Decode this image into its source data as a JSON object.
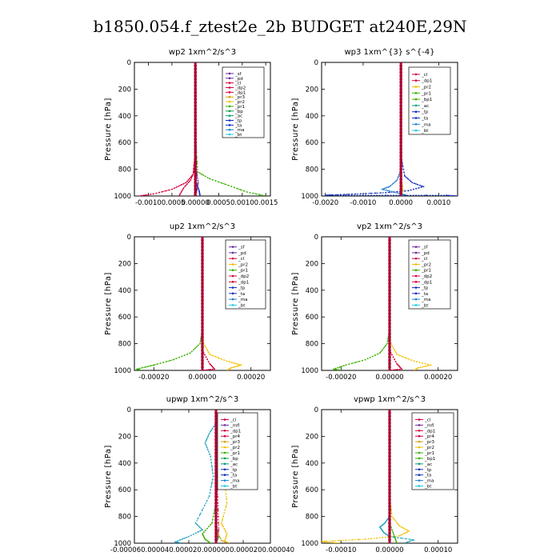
{
  "figure": {
    "title": "b1850.054.f_ztest2e_2b  BUDGET at240E,29N",
    "ylabel": "Pressure [hPa]"
  },
  "palette": {
    "sf": "#6a2ca0",
    "pd": "#6a2ca0",
    "mfl": "#6a2ca0",
    "cl": "#d8003a",
    "dp2": "#d8003a",
    "dp1": "#d8003a",
    "pr4": "#d8003a",
    "pr3": "#d8a000",
    "pr2": "#f0c000",
    "pr1": "#38b000",
    "bp1": "#38b000",
    "bp": "#00a040",
    "ac": "#00a070",
    "tp": "#1030c0",
    "ta": "#1030c0",
    "ma": "#2080d0",
    "bt": "#20c8e0"
  },
  "chart_data": [
    {
      "type": "line",
      "title": "wp2   1xm^2/s^3",
      "xlim": [
        -0.0013,
        0.0016
      ],
      "ylim": [
        1000,
        0
      ],
      "xticks": [
        -0.001,
        -0.0005,
        0.0,
        0.0005,
        0.001,
        0.0015
      ],
      "xtick_labels": [
        "-0.00100.0005",
        "0.00000",
        "0.00050.00100.0015"
      ],
      "xtick_label_positions": [
        -0.00075,
        0.0,
        0.001
      ],
      "yticks": [
        0,
        200,
        400,
        600,
        800,
        1000
      ],
      "legend": [
        "_sf",
        "_pd",
        "_cl",
        "_dp2",
        "_dp1",
        "_pr3",
        "_pr2",
        "_pr1",
        "_bp",
        "_ac",
        "_tp",
        "_ta",
        "_ma",
        "_bt"
      ],
      "series": [
        {
          "name": "_pr1",
          "color": "#38b000",
          "points": [
            [
              0,
              0
            ],
            [
              1e-05,
              600
            ],
            [
              5e-05,
              820
            ],
            [
              0.0003,
              870
            ],
            [
              0.0007,
              920
            ],
            [
              0.0011,
              970
            ],
            [
              0.0015,
              1000
            ]
          ]
        },
        {
          "name": "_cl",
          "color": "#d8003a",
          "points": [
            [
              0,
              0
            ],
            [
              -1e-05,
              700
            ],
            [
              -5e-05,
              840
            ],
            [
              -0.0002,
              900
            ],
            [
              -0.0005,
              950
            ],
            [
              -0.0009,
              985
            ],
            [
              -0.0012,
              1000
            ]
          ]
        },
        {
          "name": "_dp2",
          "color": "#d8003a",
          "points": [
            [
              0,
              0
            ],
            [
              -1e-05,
              800
            ],
            [
              -0.0001,
              880
            ],
            [
              -0.00025,
              940
            ],
            [
              -0.00035,
              1000
            ]
          ]
        },
        {
          "name": "_tp",
          "color": "#1030c0",
          "points": [
            [
              0,
              0
            ],
            [
              2e-05,
              900
            ],
            [
              8e-05,
              960
            ],
            [
              0.0001,
              1000
            ]
          ]
        },
        {
          "name": "_sf",
          "color": "#6a2ca0",
          "points": [
            [
              0,
              0
            ],
            [
              2e-05,
              800
            ],
            [
              6e-05,
              900
            ],
            [
              3e-05,
              960
            ],
            [
              -3e-05,
              1000
            ]
          ]
        },
        {
          "name": "_bt",
          "color": "#20c8e0",
          "points": [
            [
              0,
              0
            ],
            [
              0,
              1000
            ]
          ]
        }
      ]
    },
    {
      "type": "line",
      "title": "wp3   1xm^{3} s^{-4}",
      "xlim": [
        -0.0021,
        0.0015
      ],
      "ylim": [
        1000,
        0
      ],
      "xticks": [
        -0.002,
        -0.001,
        0.0,
        0.001
      ],
      "xtick_labels": [
        "-0.0020",
        "-0.0010",
        "0.0000",
        "0.0010"
      ],
      "yticks": [
        0,
        200,
        400,
        600,
        800,
        1000
      ],
      "legend": [
        "_cl",
        "_dp1",
        "_pr2",
        "_pr1",
        "_bp1",
        "_ac",
        "_tp",
        "_ta",
        "_ma",
        "_bt"
      ],
      "series": [
        {
          "name": "_ta",
          "color": "#1030c0",
          "points": [
            [
              0,
              0
            ],
            [
              0,
              700
            ],
            [
              0.0001,
              850
            ],
            [
              0.0003,
              900
            ],
            [
              0.0006,
              930
            ],
            [
              0.0002,
              960
            ],
            [
              -0.0004,
              975
            ],
            [
              -0.0012,
              985
            ],
            [
              -0.0018,
              992
            ],
            [
              -0.002,
              995
            ],
            [
              0.0012,
              995
            ],
            [
              0.0015,
              1000
            ]
          ]
        },
        {
          "name": "_ma",
          "color": "#2080d0",
          "points": [
            [
              0,
              0
            ],
            [
              0,
              800
            ],
            [
              -0.0001,
              880
            ],
            [
              -0.0003,
              930
            ],
            [
              -0.0005,
              950
            ],
            [
              -0.0002,
              970
            ],
            [
              0.0001,
              990
            ],
            [
              0,
              1000
            ]
          ]
        },
        {
          "name": "_pr2",
          "color": "#f0c000",
          "points": [
            [
              0,
              0
            ],
            [
              0,
              850
            ],
            [
              5e-05,
              950
            ],
            [
              0,
              1000
            ]
          ]
        },
        {
          "name": "_cl",
          "color": "#d8003a",
          "points": [
            [
              0,
              0
            ],
            [
              0,
              1000
            ]
          ]
        }
      ]
    },
    {
      "type": "line",
      "title": "up2   1xm^2/s^3",
      "xlim": [
        -0.00028,
        0.00028
      ],
      "ylim": [
        1000,
        0
      ],
      "xticks": [
        -0.0002,
        0.0,
        0.0002
      ],
      "xtick_labels": [
        "-0.00020",
        "0.00000",
        "0.00020"
      ],
      "yticks": [
        0,
        200,
        400,
        600,
        800,
        1000
      ],
      "legend": [
        "_sf",
        "_pd",
        "_cl",
        "_pr2",
        "_pr1",
        "_dp2",
        "_dp1",
        "_tp",
        "_ta",
        "_ma",
        "_bt"
      ],
      "series": [
        {
          "name": "_pr1",
          "color": "#38b000",
          "points": [
            [
              0,
              0
            ],
            [
              0,
              700
            ],
            [
              -1e-05,
              800
            ],
            [
              -5e-05,
              870
            ],
            [
              -0.00012,
              920
            ],
            [
              -0.0002,
              960
            ],
            [
              -0.00027,
              990
            ],
            [
              -0.00025,
              1000
            ]
          ]
        },
        {
          "name": "_pr2",
          "color": "#f0c000",
          "points": [
            [
              0,
              0
            ],
            [
              0,
              780
            ],
            [
              3e-05,
              880
            ],
            [
              0.0001,
              930
            ],
            [
              0.00016,
              960
            ],
            [
              0.00012,
              980
            ],
            [
              0.0001,
              1000
            ]
          ]
        },
        {
          "name": "_cl",
          "color": "#d8003a",
          "points": [
            [
              0,
              0
            ],
            [
              0,
              850
            ],
            [
              3e-05,
              950
            ],
            [
              5e-05,
              990
            ],
            [
              0,
              1000
            ]
          ]
        },
        {
          "name": "_pd",
          "color": "#6a2ca0",
          "points": [
            [
              0,
              0
            ],
            [
              0,
              1000
            ]
          ]
        }
      ]
    },
    {
      "type": "line",
      "title": "vp2   1xm^2/s^3",
      "xlim": [
        -0.00028,
        0.00028
      ],
      "ylim": [
        1000,
        0
      ],
      "xticks": [
        -0.0002,
        0.0,
        0.0002
      ],
      "xtick_labels": [
        "-0.00020",
        "0.00000",
        "0.00020"
      ],
      "yticks": [
        0,
        200,
        400,
        600,
        800,
        1000
      ],
      "legend": [
        "_sf",
        "_pd",
        "_cl",
        "_pr2",
        "_pr1",
        "_dp2",
        "_dp1",
        "_tp",
        "_ta",
        "_ma",
        "_bt"
      ],
      "series": [
        {
          "name": "_pr1",
          "color": "#38b000",
          "points": [
            [
              0,
              0
            ],
            [
              0,
              700
            ],
            [
              -1e-05,
              800
            ],
            [
              -4e-05,
              870
            ],
            [
              -0.0001,
              920
            ],
            [
              -0.00018,
              960
            ],
            [
              -0.00023,
              990
            ],
            [
              -0.0002,
              1000
            ]
          ]
        },
        {
          "name": "_pr2",
          "color": "#f0c000",
          "points": [
            [
              0,
              0
            ],
            [
              0,
              780
            ],
            [
              3e-05,
              880
            ],
            [
              0.0001,
              930
            ],
            [
              0.00017,
              960
            ],
            [
              0.00012,
              980
            ],
            [
              0.0001,
              1000
            ]
          ]
        },
        {
          "name": "_cl",
          "color": "#d8003a",
          "points": [
            [
              0,
              0
            ],
            [
              0,
              850
            ],
            [
              3e-05,
              950
            ],
            [
              5e-05,
              990
            ],
            [
              0,
              1000
            ]
          ]
        },
        {
          "name": "_pd",
          "color": "#6a2ca0",
          "points": [
            [
              0,
              0
            ],
            [
              0,
              1000
            ]
          ]
        }
      ]
    },
    {
      "type": "line",
      "title": "upwp   1xm^2/s^3",
      "xlim": [
        -6e-05,
        4e-05
      ],
      "ylim": [
        1000,
        0
      ],
      "xticks": [
        -6e-05,
        -4e-05,
        -2e-05,
        0.0,
        2e-05,
        4e-05
      ],
      "xtick_labels": [
        "-0.000060.000040.000020.0000000.0000200.000040"
      ],
      "xtick_label_positions": [
        -1e-05
      ],
      "yticks": [
        0,
        200,
        400,
        600,
        800,
        1000
      ],
      "legend": [
        "_cl",
        "_mfl",
        "_dp1",
        "_pr4",
        "_pr3",
        "_pr2",
        "_pr1",
        "_bp",
        "_ac",
        "_tp",
        "_ta",
        "_ma",
        "_bt"
      ],
      "series": [
        {
          "name": "_tp",
          "color": "#20a0c0",
          "points": [
            [
              0,
              0
            ],
            [
              0,
              100
            ],
            [
              -5e-06,
              180
            ],
            [
              -8e-06,
              250
            ],
            [
              -4e-06,
              350
            ],
            [
              -2e-06,
              500
            ],
            [
              -5e-06,
              650
            ],
            [
              -1.5e-05,
              850
            ],
            [
              -1e-05,
              900
            ],
            [
              -2e-05,
              950
            ],
            [
              -3e-05,
              990
            ],
            [
              -2.5e-05,
              1000
            ]
          ]
        },
        {
          "name": "_pr2",
          "color": "#f0c000",
          "points": [
            [
              0,
              0
            ],
            [
              3e-06,
              300
            ],
            [
              6e-06,
              500
            ],
            [
              8e-06,
              700
            ],
            [
              4e-06,
              850
            ],
            [
              8e-06,
              930
            ],
            [
              6e-06,
              1000
            ]
          ]
        },
        {
          "name": "_bp",
          "color": "#38b000",
          "points": [
            [
              0,
              0
            ],
            [
              0,
              700
            ],
            [
              -3e-06,
              850
            ],
            [
              -1e-05,
              930
            ],
            [
              -8e-06,
              970
            ],
            [
              -4e-06,
              1000
            ]
          ]
        },
        {
          "name": "_ac",
          "color": "#00a070",
          "points": [
            [
              0,
              0
            ],
            [
              0,
              850
            ],
            [
              2e-06,
              950
            ],
            [
              0,
              1000
            ]
          ]
        },
        {
          "name": "_cl",
          "color": "#d8003a",
          "points": [
            [
              0,
              0
            ],
            [
              1e-06,
              600
            ],
            [
              2e-06,
              900
            ],
            [
              0,
              1000
            ]
          ]
        },
        {
          "name": "_pr3",
          "color": "#d8a000",
          "points": [
            [
              0,
              0
            ],
            [
              0,
              900
            ],
            [
              4e-06,
              980
            ],
            [
              1e-05,
              1000
            ]
          ]
        }
      ]
    },
    {
      "type": "line",
      "title": "vpwp   1xm^2/s^3",
      "xlim": [
        -0.00014,
        0.00014
      ],
      "ylim": [
        1000,
        0
      ],
      "xticks": [
        -0.0001,
        0.0,
        0.0001
      ],
      "xtick_labels": [
        "-0.00010",
        "0.00000",
        "0.00010"
      ],
      "yticks": [
        0,
        200,
        400,
        600,
        800,
        1000
      ],
      "legend": [
        "_cl",
        "_mfl",
        "_dp1",
        "_pr4",
        "_pr3",
        "_pr2",
        "_pr1",
        "_bp1",
        "_ac",
        "_tp",
        "_ta",
        "_ma",
        "_bt"
      ],
      "series": [
        {
          "name": "_pr2",
          "color": "#f0c000",
          "points": [
            [
              0,
              0
            ],
            [
              0,
              650
            ],
            [
              5e-06,
              800
            ],
            [
              2e-05,
              870
            ],
            [
              4e-05,
              910
            ],
            [
              2e-05,
              945
            ],
            [
              -5e-05,
              970
            ],
            [
              -0.00013,
              985
            ],
            [
              -0.00014,
              990
            ],
            [
              -0.0001,
              1000
            ]
          ]
        },
        {
          "name": "_tp",
          "color": "#20a0c0",
          "points": [
            [
              0,
              0
            ],
            [
              0,
              800
            ],
            [
              -1e-05,
              850
            ],
            [
              -2e-05,
              880
            ],
            [
              -1.2e-05,
              920
            ],
            [
              0,
              950
            ],
            [
              5e-05,
              975
            ],
            [
              3e-05,
              1000
            ]
          ]
        },
        {
          "name": "_pr1",
          "color": "#38b000",
          "points": [
            [
              0,
              0
            ],
            [
              0,
              850
            ],
            [
              1e-05,
              950
            ],
            [
              1.5e-05,
              1000
            ]
          ]
        },
        {
          "name": "_cl",
          "color": "#d8003a",
          "points": [
            [
              0,
              0
            ],
            [
              0,
              1000
            ]
          ]
        }
      ]
    }
  ]
}
